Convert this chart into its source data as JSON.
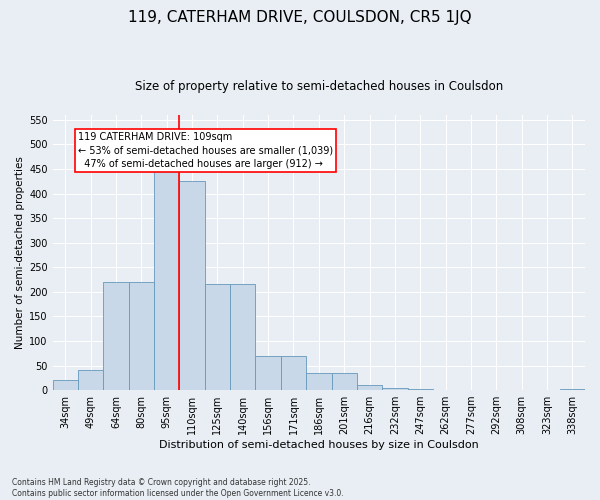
{
  "title1": "119, CATERHAM DRIVE, COULSDON, CR5 1JQ",
  "title2": "Size of property relative to semi-detached houses in Coulsdon",
  "xlabel": "Distribution of semi-detached houses by size in Coulsdon",
  "ylabel": "Number of semi-detached properties",
  "bins": [
    "34sqm",
    "49sqm",
    "64sqm",
    "80sqm",
    "95sqm",
    "110sqm",
    "125sqm",
    "140sqm",
    "156sqm",
    "171sqm",
    "186sqm",
    "201sqm",
    "216sqm",
    "232sqm",
    "247sqm",
    "262sqm",
    "277sqm",
    "292sqm",
    "308sqm",
    "323sqm",
    "338sqm"
  ],
  "values": [
    20,
    40,
    220,
    220,
    460,
    425,
    215,
    215,
    70,
    70,
    35,
    35,
    10,
    5,
    2,
    0,
    0,
    0,
    0,
    0,
    2
  ],
  "bar_color": "#c8d8e8",
  "bar_edge_color": "#6699bb",
  "vline_color": "red",
  "vline_pos": 4.5,
  "annotation_title": "119 CATERHAM DRIVE: 109sqm",
  "annotation_line1": "← 53% of semi-detached houses are smaller (1,039)",
  "annotation_line2": "47% of semi-detached houses are larger (912) →",
  "ylim": [
    0,
    560
  ],
  "yticks": [
    0,
    50,
    100,
    150,
    200,
    250,
    300,
    350,
    400,
    450,
    500,
    550
  ],
  "bg_color": "#e8eef4",
  "footer1": "Contains HM Land Registry data © Crown copyright and database right 2025.",
  "footer2": "Contains public sector information licensed under the Open Government Licence v3.0.",
  "title1_fontsize": 11,
  "title2_fontsize": 8.5,
  "xlabel_fontsize": 8,
  "ylabel_fontsize": 7.5,
  "tick_fontsize": 7,
  "footer_fontsize": 5.5,
  "ann_fontsize": 7
}
